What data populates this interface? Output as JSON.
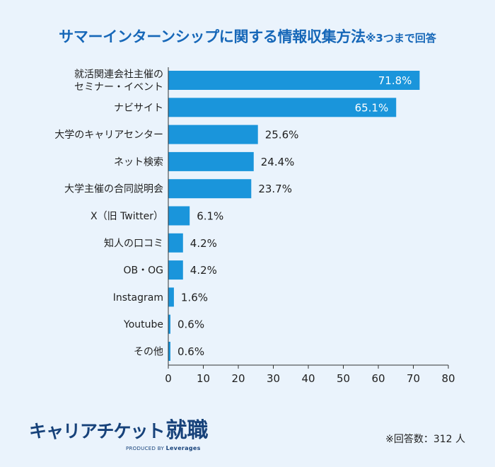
{
  "title": {
    "main": "サマーインターンシップに関する情報収集方法",
    "note": "※3つまで回答"
  },
  "chart_data": {
    "type": "bar",
    "orientation": "horizontal",
    "categories": [
      "就活関連会社主催の\nセミナー・イベント",
      "ナビサイト",
      "大学のキャリアセンター",
      "ネット検索",
      "大学主催の合同説明会",
      "X（旧 Twitter）",
      "知人の口コミ",
      "OB・OG",
      "Instagram",
      "Youtube",
      "その他"
    ],
    "values": [
      71.8,
      65.1,
      25.6,
      24.4,
      23.7,
      6.1,
      4.2,
      4.2,
      1.6,
      0.6,
      0.6
    ],
    "value_labels": [
      "71.8%",
      "65.1%",
      "25.6%",
      "24.4%",
      "23.7%",
      "6.1%",
      "4.2%",
      "4.2%",
      "1.6%",
      "0.6%",
      "0.6%"
    ],
    "xlim": [
      0,
      80
    ],
    "x_ticks": [
      0,
      10,
      20,
      30,
      40,
      50,
      60,
      70,
      80
    ],
    "grid": false,
    "bar_color": "#1a95db"
  },
  "logo": {
    "main_a": "キャリアチケット",
    "main_b": "就職",
    "sub_prefix": "PRODUCED BY",
    "sub_brand": "Leverages"
  },
  "footnote": "※回答数：312 人"
}
